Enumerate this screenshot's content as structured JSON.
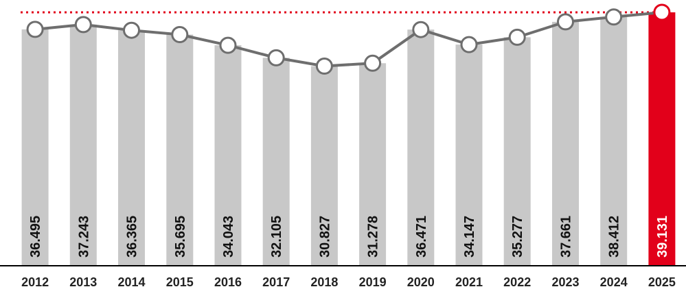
{
  "chart_data": {
    "type": "bar",
    "categories": [
      "2012",
      "2013",
      "2014",
      "2015",
      "2016",
      "2017",
      "2018",
      "2019",
      "2020",
      "2021",
      "2022",
      "2023",
      "2024",
      "2025"
    ],
    "values": [
      36.495,
      37.243,
      36.365,
      35.695,
      34.043,
      32.105,
      30.827,
      31.278,
      36.471,
      34.147,
      35.277,
      37.661,
      38.412,
      39.131
    ],
    "value_labels": [
      "36.495",
      "37.243",
      "36.365",
      "35.695",
      "34.043",
      "32.105",
      "30.827",
      "31.278",
      "36.471",
      "34.147",
      "35.277",
      "37.661",
      "38.412",
      "39.131"
    ],
    "overlay": {
      "type": "line",
      "markers": "circle",
      "values": [
        36.495,
        37.243,
        36.365,
        35.695,
        34.043,
        32.105,
        30.827,
        31.278,
        36.471,
        34.147,
        35.277,
        37.661,
        38.412,
        39.131
      ]
    },
    "reference_line": {
      "value": 39.131,
      "style": "dotted"
    },
    "highlight_category": "2025",
    "ylim": [
      0,
      39.131
    ],
    "grid": false,
    "legend": "none",
    "title": "",
    "xlabel": "",
    "ylabel": "",
    "colors": {
      "bar": "#c8c8c8",
      "highlight": "#e2001a",
      "line": "#6e6e6e",
      "marker_fill": "#ffffff"
    }
  }
}
